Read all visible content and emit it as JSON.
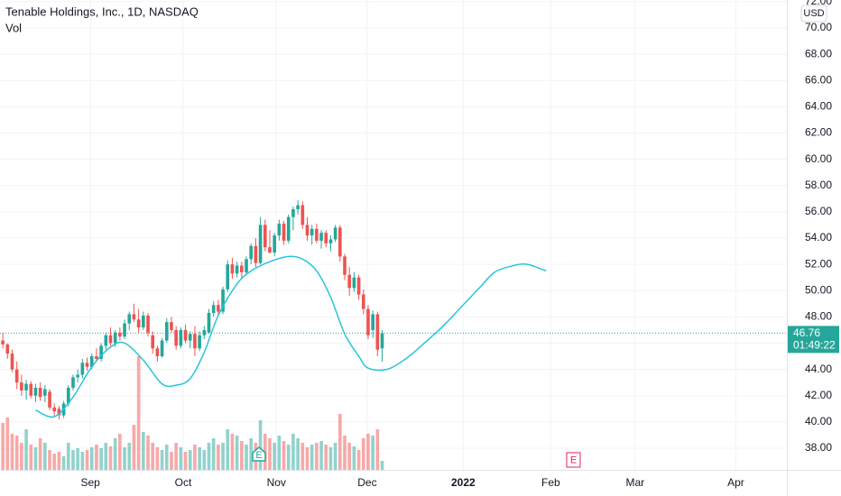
{
  "chart_data": {
    "type": "candlestick",
    "title": "Tenable Holdings, Inc., 1D, NASDAQ",
    "volume_label": "Vol",
    "currency": "USD",
    "up_color": "#26a69a",
    "down_color": "#ef5350",
    "line_color": "#26c6da",
    "open": [
      46.2,
      45.9,
      45.2,
      44.0,
      43.0,
      42.4,
      42.9,
      42.0,
      42.6,
      42.0,
      42.3,
      41.1,
      41.0,
      40.5,
      41.4,
      42.6,
      43.4,
      43.6,
      44.5,
      44.2,
      45.0,
      44.8,
      45.8,
      46.6,
      46.0,
      46.8,
      46.5,
      47.5,
      48.2,
      47.8,
      47.2,
      48.1,
      46.6,
      45.6,
      45.0,
      46.2,
      47.6,
      47.0,
      45.8,
      47.0,
      46.2,
      46.7,
      45.6,
      46.6,
      46.8,
      48.3,
      48.9,
      48.4,
      50.1,
      52.0,
      51.3,
      51.9,
      51.4,
      52.4,
      53.4,
      52.1,
      55.0,
      53.3,
      52.9,
      54.2,
      55.1,
      53.8,
      55.6,
      56.2,
      56.5,
      55.0,
      54.2,
      54.7,
      53.8,
      54.4,
      53.6,
      53.9,
      54.8,
      52.6,
      51.2,
      50.2,
      51.0,
      49.7,
      48.6,
      47.0,
      48.2,
      45.6
    ],
    "high": [
      46.8,
      46.0,
      45.5,
      44.6,
      43.6,
      43.2,
      43.1,
      42.9,
      43.0,
      42.8,
      42.5,
      41.4,
      41.2,
      41.6,
      42.8,
      43.6,
      44.0,
      44.8,
      44.9,
      45.2,
      45.6,
      46.0,
      46.8,
      47.2,
      47.0,
      47.2,
      47.8,
      48.4,
      49.0,
      48.6,
      48.4,
      48.3,
      46.9,
      45.8,
      46.4,
      47.9,
      48.0,
      47.3,
      47.2,
      47.4,
      46.9,
      47.3,
      46.9,
      47.3,
      48.6,
      49.2,
      49.3,
      50.3,
      52.3,
      52.5,
      52.2,
      52.2,
      52.6,
      53.6,
      54.0,
      55.6,
      55.4,
      54.6,
      54.4,
      55.4,
      55.3,
      55.8,
      56.4,
      56.9,
      56.8,
      55.6,
      55.0,
      55.1,
      54.6,
      54.6,
      54.2,
      55.0,
      55.0,
      52.8,
      51.8,
      51.4,
      51.2,
      50.1,
      48.9,
      48.5,
      48.4,
      47.0
    ],
    "low": [
      45.6,
      44.8,
      43.8,
      42.5,
      42.0,
      41.7,
      41.8,
      41.5,
      41.6,
      41.5,
      40.9,
      40.4,
      40.2,
      40.3,
      41.2,
      42.4,
      43.0,
      43.3,
      43.9,
      44.0,
      44.6,
      44.6,
      45.5,
      45.8,
      45.7,
      46.2,
      46.3,
      47.0,
      47.6,
      46.8,
      47.0,
      46.5,
      45.2,
      44.6,
      44.9,
      46.0,
      46.8,
      45.5,
      45.6,
      46.0,
      45.6,
      45.0,
      45.4,
      46.3,
      46.7,
      48.0,
      48.1,
      48.2,
      49.9,
      50.9,
      51.0,
      51.0,
      51.2,
      52.0,
      51.8,
      52.0,
      53.0,
      52.8,
      52.6,
      53.8,
      53.5,
      53.6,
      54.6,
      55.8,
      54.7,
      53.8,
      53.5,
      53.6,
      53.2,
      53.3,
      53.0,
      53.7,
      52.2,
      50.8,
      49.6,
      49.9,
      49.3,
      48.2,
      46.3,
      46.4,
      45.0,
      44.6
    ],
    "close": [
      45.9,
      45.2,
      44.0,
      43.0,
      42.4,
      42.9,
      42.0,
      42.6,
      41.9,
      42.5,
      41.1,
      40.8,
      40.5,
      41.4,
      42.6,
      43.4,
      43.6,
      44.5,
      44.2,
      45.0,
      44.8,
      45.8,
      46.6,
      46.0,
      46.8,
      46.5,
      47.5,
      48.2,
      47.8,
      47.2,
      48.1,
      46.8,
      45.6,
      45.0,
      46.2,
      47.6,
      47.0,
      45.8,
      47.0,
      46.2,
      46.7,
      45.6,
      46.6,
      47.0,
      48.3,
      48.9,
      48.4,
      50.1,
      52.0,
      51.3,
      51.9,
      51.4,
      52.4,
      53.4,
      52.1,
      55.0,
      53.3,
      52.9,
      54.2,
      55.1,
      53.8,
      55.6,
      56.2,
      56.5,
      55.0,
      54.2,
      54.7,
      53.8,
      54.4,
      53.6,
      53.9,
      54.8,
      52.6,
      51.2,
      50.2,
      51.0,
      49.7,
      48.6,
      46.6,
      48.2,
      45.5,
      46.76
    ],
    "volume": [
      52,
      58,
      40,
      38,
      30,
      45,
      28,
      25,
      35,
      30,
      22,
      18,
      20,
      15,
      30,
      22,
      24,
      20,
      22,
      25,
      28,
      24,
      30,
      26,
      35,
      40,
      25,
      30,
      50,
      126,
      42,
      38,
      30,
      25,
      22,
      28,
      20,
      30,
      25,
      20,
      22,
      28,
      25,
      22,
      30,
      35,
      28,
      30,
      45,
      40,
      38,
      32,
      28,
      35,
      30,
      55,
      40,
      35,
      30,
      38,
      32,
      28,
      40,
      35,
      30,
      25,
      28,
      30,
      32,
      28,
      25,
      30,
      62,
      38,
      30,
      26,
      22,
      35,
      40,
      38,
      45,
      10
    ],
    "curve": {
      "x": [
        7,
        11,
        15,
        19,
        23,
        26,
        30,
        34,
        37,
        40,
        43,
        46,
        50,
        53,
        57,
        61,
        64,
        67,
        70,
        73,
        76,
        78,
        82,
        86,
        90,
        94,
        98,
        102,
        105,
        109,
        112,
        116
      ],
      "values": [
        40.9,
        40.4,
        41.9,
        44.2,
        45.7,
        46.0,
        44.7,
        42.9,
        42.8,
        43.3,
        45.3,
        48.1,
        50.5,
        51.5,
        52.2,
        52.6,
        52.4,
        51.5,
        49.5,
        46.7,
        45.0,
        44.1,
        44.0,
        44.8,
        46.0,
        47.3,
        48.8,
        50.3,
        51.4,
        51.9,
        52.0,
        51.5
      ]
    },
    "last_price": {
      "value": 46.76,
      "label": "46.76"
    },
    "countdown": "01:49:22",
    "earnings_markers": [
      "E",
      "E"
    ],
    "ylim": [
      36.35,
      72.13
    ],
    "yticks": [
      {
        "value": 38,
        "label": "38.00"
      },
      {
        "value": 40,
        "label": "40.00"
      },
      {
        "value": 42,
        "label": "42.00"
      },
      {
        "value": 44,
        "label": "44.00"
      },
      {
        "value": 46,
        "label": "46.00"
      },
      {
        "value": 48,
        "label": "48.00"
      },
      {
        "value": 50,
        "label": "50.00"
      },
      {
        "value": 52,
        "label": "52.00"
      },
      {
        "value": 54,
        "label": "54.00"
      },
      {
        "value": 56,
        "label": "56.00"
      },
      {
        "value": 58,
        "label": "58.00"
      },
      {
        "value": 60,
        "label": "60.00"
      },
      {
        "value": 62,
        "label": "62.00"
      },
      {
        "value": 64,
        "label": "64.00"
      },
      {
        "value": 66,
        "label": "66.00"
      },
      {
        "value": 68,
        "label": "68.00"
      },
      {
        "value": 70,
        "label": "70.00"
      },
      {
        "value": 72,
        "label": "72.00"
      }
    ],
    "xlim": [
      -0.6,
      167.4
    ],
    "xticks": [
      {
        "value": 18.7,
        "label": "Sep"
      },
      {
        "value": 38.5,
        "label": "Oct"
      },
      {
        "value": 58.4,
        "label": "Nov"
      },
      {
        "value": 77.8,
        "label": "Dec"
      },
      {
        "value": 98.3,
        "label": "2022"
      },
      {
        "value": 117,
        "label": "Feb"
      },
      {
        "value": 135,
        "label": "Mar"
      },
      {
        "value": 156.5,
        "label": "Apr"
      }
    ],
    "grid": true
  }
}
